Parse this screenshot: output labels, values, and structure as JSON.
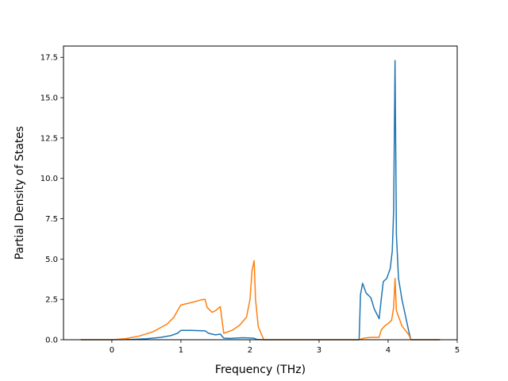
{
  "chart_data": {
    "type": "line",
    "title": "",
    "xlabel": "Frequency (THz)",
    "ylabel": "Partial Density of States",
    "xlim": [
      -0.7,
      5.0
    ],
    "ylim": [
      0.0,
      18.2
    ],
    "grid": false,
    "legend": "none",
    "x_ticks": [
      0,
      1,
      2,
      3,
      4,
      5
    ],
    "x_tick_labels": [
      "0",
      "1",
      "2",
      "3",
      "4",
      "5"
    ],
    "y_ticks": [
      0.0,
      2.5,
      5.0,
      7.5,
      10.0,
      12.5,
      15.0,
      17.5
    ],
    "y_tick_labels": [
      "0.0",
      "2.5",
      "5.0",
      "7.5",
      "10.0",
      "12.5",
      "15.0",
      "17.5"
    ],
    "series": [
      {
        "color": "#1f77b4",
        "points": [
          [
            -0.45,
            0
          ],
          [
            0.0,
            0
          ],
          [
            0.3,
            0.02
          ],
          [
            0.5,
            0.06
          ],
          [
            0.7,
            0.14
          ],
          [
            0.85,
            0.25
          ],
          [
            0.95,
            0.4
          ],
          [
            1.0,
            0.58
          ],
          [
            1.15,
            0.58
          ],
          [
            1.35,
            0.55
          ],
          [
            1.4,
            0.4
          ],
          [
            1.5,
            0.3
          ],
          [
            1.57,
            0.35
          ],
          [
            1.62,
            0.1
          ],
          [
            1.7,
            0.08
          ],
          [
            1.9,
            0.12
          ],
          [
            2.05,
            0.1
          ],
          [
            2.1,
            0.02
          ],
          [
            2.2,
            0
          ],
          [
            3.58,
            0
          ],
          [
            3.6,
            2.8
          ],
          [
            3.63,
            3.5
          ],
          [
            3.68,
            2.9
          ],
          [
            3.75,
            2.6
          ],
          [
            3.8,
            1.9
          ],
          [
            3.87,
            1.3
          ],
          [
            3.9,
            2.5
          ],
          [
            3.93,
            3.6
          ],
          [
            3.98,
            3.8
          ],
          [
            4.03,
            4.4
          ],
          [
            4.06,
            5.5
          ],
          [
            4.08,
            8.0
          ],
          [
            4.1,
            17.3
          ],
          [
            4.12,
            6.5
          ],
          [
            4.15,
            3.8
          ],
          [
            4.2,
            2.5
          ],
          [
            4.25,
            1.5
          ],
          [
            4.3,
            0.5
          ],
          [
            4.33,
            0
          ],
          [
            4.75,
            0
          ]
        ]
      },
      {
        "color": "#ff7f0e",
        "points": [
          [
            -0.45,
            0
          ],
          [
            0.0,
            0
          ],
          [
            0.2,
            0.07
          ],
          [
            0.4,
            0.23
          ],
          [
            0.6,
            0.5
          ],
          [
            0.8,
            0.97
          ],
          [
            0.9,
            1.4
          ],
          [
            0.95,
            1.8
          ],
          [
            1.0,
            2.15
          ],
          [
            1.15,
            2.3
          ],
          [
            1.3,
            2.48
          ],
          [
            1.35,
            2.5
          ],
          [
            1.38,
            2.0
          ],
          [
            1.45,
            1.7
          ],
          [
            1.5,
            1.8
          ],
          [
            1.57,
            2.05
          ],
          [
            1.62,
            0.4
          ],
          [
            1.75,
            0.6
          ],
          [
            1.85,
            0.9
          ],
          [
            1.95,
            1.4
          ],
          [
            2.0,
            2.5
          ],
          [
            2.03,
            4.3
          ],
          [
            2.06,
            4.9
          ],
          [
            2.08,
            2.5
          ],
          [
            2.12,
            0.8
          ],
          [
            2.2,
            0
          ],
          [
            3.58,
            0
          ],
          [
            3.65,
            0.1
          ],
          [
            3.75,
            0.15
          ],
          [
            3.87,
            0.15
          ],
          [
            3.9,
            0.6
          ],
          [
            3.95,
            0.85
          ],
          [
            4.0,
            1.0
          ],
          [
            4.05,
            1.2
          ],
          [
            4.08,
            2.0
          ],
          [
            4.1,
            3.8
          ],
          [
            4.12,
            1.8
          ],
          [
            4.2,
            0.85
          ],
          [
            4.3,
            0.3
          ],
          [
            4.33,
            0
          ],
          [
            4.75,
            0
          ]
        ]
      }
    ]
  }
}
